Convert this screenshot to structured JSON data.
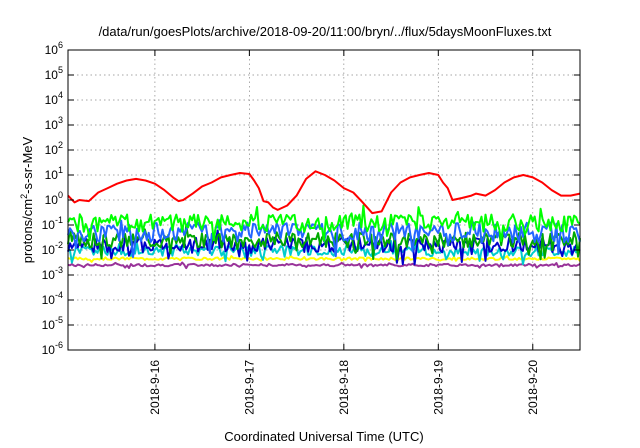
{
  "chart_data": {
    "type": "line",
    "title": "/data/run/goesPlots/archive/2018-09-20/11:00/bryn/../flux/5daysMoonFluxes.txt",
    "xlabel": "Coordinated Universal Time (UTC)",
    "ylabel": {
      "prefix": "protons/cm",
      "exp": "2",
      "suffix": "-s-sr-MeV"
    },
    "yscale": "log",
    "ylim": [
      1e-06,
      1000000.0
    ],
    "xlim": [
      15.08,
      20.5
    ],
    "grid": true,
    "y_ticks": [
      {
        "base": "10",
        "exp": "-6",
        "value": -6
      },
      {
        "base": "10",
        "exp": "-5",
        "value": -5
      },
      {
        "base": "10",
        "exp": "-4",
        "value": -4
      },
      {
        "base": "10",
        "exp": "-3",
        "value": -3
      },
      {
        "base": "10",
        "exp": "-2",
        "value": -2
      },
      {
        "base": "10",
        "exp": "-1",
        "value": -1
      },
      {
        "base": "10",
        "exp": "0",
        "value": 0
      },
      {
        "base": "10",
        "exp": "1",
        "value": 1
      },
      {
        "base": "10",
        "exp": "2",
        "value": 2
      },
      {
        "base": "10",
        "exp": "3",
        "value": 3
      },
      {
        "base": "10",
        "exp": "4",
        "value": 4
      },
      {
        "base": "10",
        "exp": "5",
        "value": 5
      },
      {
        "base": "10",
        "exp": "6",
        "value": 6
      }
    ],
    "x_ticks": [
      {
        "label": "2018-9-16",
        "value": 16
      },
      {
        "label": "2018-9-17",
        "value": 17
      },
      {
        "label": "2018-9-18",
        "value": 18
      },
      {
        "label": "2018-9-19",
        "value": 19
      },
      {
        "label": "2018-9-20",
        "value": 20
      }
    ],
    "series": [
      {
        "color": "#ff0000",
        "points": [
          [
            15.08,
            1.5
          ],
          [
            15.15,
            0.8
          ],
          [
            15.2,
            1.0
          ],
          [
            15.3,
            0.9
          ],
          [
            15.4,
            2.0
          ],
          [
            15.5,
            3.0
          ],
          [
            15.6,
            4.5
          ],
          [
            15.7,
            6.0
          ],
          [
            15.8,
            7.0
          ],
          [
            15.9,
            6.0
          ],
          [
            16.0,
            4.5
          ],
          [
            16.1,
            2.5
          ],
          [
            16.2,
            1.2
          ],
          [
            16.25,
            0.9
          ],
          [
            16.3,
            1.0
          ],
          [
            16.4,
            1.8
          ],
          [
            16.5,
            3.5
          ],
          [
            16.6,
            5.0
          ],
          [
            16.7,
            8.0
          ],
          [
            16.8,
            10.0
          ],
          [
            16.9,
            12.0
          ],
          [
            17.0,
            11.0
          ],
          [
            17.05,
            6.0
          ],
          [
            17.1,
            3.0
          ],
          [
            17.15,
            0.9
          ],
          [
            17.2,
            0.8
          ],
          [
            17.25,
            0.5
          ],
          [
            17.3,
            0.4
          ],
          [
            17.4,
            0.6
          ],
          [
            17.5,
            1.5
          ],
          [
            17.6,
            7.0
          ],
          [
            17.7,
            14.0
          ],
          [
            17.8,
            10.0
          ],
          [
            17.9,
            6.0
          ],
          [
            18.0,
            3.0
          ],
          [
            18.1,
            2.0
          ],
          [
            18.2,
            0.8
          ],
          [
            18.3,
            0.3
          ],
          [
            18.4,
            0.35
          ],
          [
            18.5,
            2.0
          ],
          [
            18.6,
            5.0
          ],
          [
            18.7,
            8.0
          ],
          [
            18.8,
            10.0
          ],
          [
            18.9,
            12.0
          ],
          [
            19.0,
            10.0
          ],
          [
            19.05,
            5.0
          ],
          [
            19.1,
            3.0
          ],
          [
            19.15,
            1.0
          ],
          [
            19.25,
            1.2
          ],
          [
            19.35,
            1.5
          ],
          [
            19.4,
            1.8
          ],
          [
            19.5,
            1.5
          ],
          [
            19.6,
            2.5
          ],
          [
            19.7,
            5.0
          ],
          [
            19.8,
            8.0
          ],
          [
            19.9,
            10.0
          ],
          [
            20.0,
            8.0
          ],
          [
            20.1,
            5.0
          ],
          [
            20.2,
            2.5
          ],
          [
            20.3,
            1.5
          ],
          [
            20.4,
            1.5
          ],
          [
            20.5,
            1.8
          ]
        ]
      },
      {
        "color": "#00ff00",
        "base": 0.12,
        "amp": 0.35,
        "seed": 1
      },
      {
        "color": "#2266ff",
        "base": 0.05,
        "amp": 0.4,
        "seed": 2
      },
      {
        "color": "#00aa00",
        "base": 0.025,
        "amp": 0.3,
        "seed": 3
      },
      {
        "color": "#0000cc",
        "base": 0.016,
        "amp": 0.3,
        "seed": 4
      },
      {
        "color": "#00cccc",
        "base": 0.009,
        "amp": 0.2,
        "seed": 5
      },
      {
        "color": "#ffff00",
        "base": 0.0045,
        "amp": 0.05,
        "seed": 6
      },
      {
        "color": "#993399",
        "base": 0.0025,
        "amp": 0.05,
        "seed": 7
      }
    ]
  }
}
